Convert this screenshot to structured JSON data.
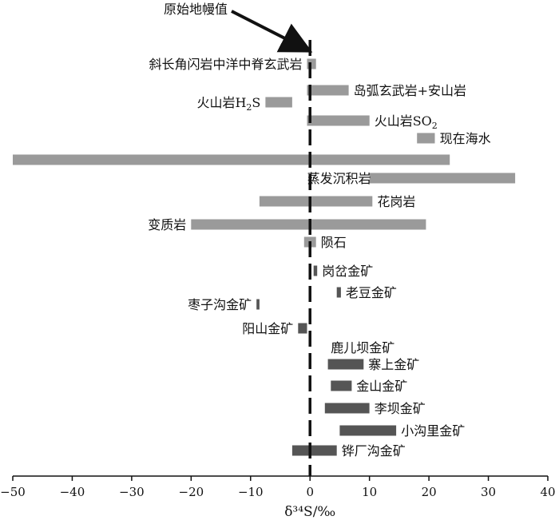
{
  "chart_data": {
    "type": "bar",
    "orientation": "horizontal-range",
    "xlabel": "δ³⁴S/‰",
    "xlim": [
      -50,
      40
    ],
    "x_ticks": [
      "−50",
      "−40",
      "−30",
      "−20",
      "−10",
      "0",
      "10",
      "20",
      "30",
      "40"
    ],
    "grid": false,
    "reference_line": {
      "x": 0,
      "style": "dashed"
    },
    "annotation": {
      "text": "原始地幔值",
      "points_to_x": 0
    },
    "colors": {
      "reference": "#9a9a9a",
      "deposit": "#555555",
      "axis": "#111111"
    },
    "ranges": [
      {
        "label": "斜长角闪岩中洋中脊玄武岩",
        "label_sub": "",
        "min": -0.5,
        "max": 1.0,
        "group": "reference",
        "label_side": "left"
      },
      {
        "label": "岛弧玄武岩+安山岩",
        "label_sub": "",
        "min": -0.5,
        "max": 6.5,
        "group": "reference",
        "label_side": "right"
      },
      {
        "label": "火山岩H",
        "label_sub": "2",
        "label_after": "S",
        "min": -7.5,
        "max": -3.0,
        "group": "reference",
        "label_side": "left"
      },
      {
        "label": "火山岩SO",
        "label_sub": "2",
        "min": -0.5,
        "max": 10.0,
        "group": "reference",
        "label_side": "right"
      },
      {
        "label": "现在海水",
        "label_sub": "",
        "min": 18.0,
        "max": 21.0,
        "group": "reference",
        "label_side": "right"
      },
      {
        "label": "",
        "label_sub": "",
        "min": -50.0,
        "max": 23.5,
        "group": "reference",
        "label_side": "none"
      },
      {
        "label": "蒸发沉积岩",
        "label_sub": "",
        "min": 10.0,
        "max": 34.5,
        "group": "reference",
        "label_side": "left-over"
      },
      {
        "label": "花岗岩",
        "label_sub": "",
        "min": -8.5,
        "max": 10.5,
        "group": "reference",
        "label_side": "right"
      },
      {
        "label": "变质岩",
        "label_sub": "",
        "min": -20.0,
        "max": 19.5,
        "group": "reference",
        "label_side": "left"
      },
      {
        "label": "陨石",
        "label_sub": "",
        "min": -1.0,
        "max": 1.0,
        "group": "reference",
        "label_side": "right"
      },
      {
        "label": "岗岔金矿",
        "label_sub": "",
        "min": 0.6,
        "max": 1.2,
        "group": "deposit",
        "label_side": "right"
      },
      {
        "label": "老豆金矿",
        "label_sub": "",
        "min": 4.5,
        "max": 5.2,
        "group": "deposit",
        "label_side": "right"
      },
      {
        "label": "枣子沟金矿",
        "label_sub": "",
        "min": -9.0,
        "max": -8.5,
        "group": "deposit",
        "label_side": "left"
      },
      {
        "label": "阳山金矿",
        "label_sub": "",
        "min": -2.0,
        "max": -0.5,
        "group": "deposit",
        "label_side": "left"
      },
      {
        "label": "鹿儿坝金矿",
        "label_sub": "",
        "min": null,
        "max": null,
        "group": "deposit",
        "label_side": "right"
      },
      {
        "label": "寨上金矿",
        "label_sub": "",
        "min": 3.0,
        "max": 9.0,
        "group": "deposit",
        "label_side": "right"
      },
      {
        "label": "金山金矿",
        "label_sub": "",
        "min": 3.5,
        "max": 7.0,
        "group": "deposit",
        "label_side": "right"
      },
      {
        "label": "李坝金矿",
        "label_sub": "",
        "min": 2.5,
        "max": 10.0,
        "group": "deposit",
        "label_side": "right"
      },
      {
        "label": "小沟里金矿",
        "label_sub": "",
        "min": 5.0,
        "max": 14.5,
        "group": "deposit",
        "label_side": "right"
      },
      {
        "label": "铧厂沟金矿",
        "label_sub": "",
        "min": -3.0,
        "max": 4.5,
        "group": "deposit",
        "label_side": "right"
      }
    ]
  }
}
